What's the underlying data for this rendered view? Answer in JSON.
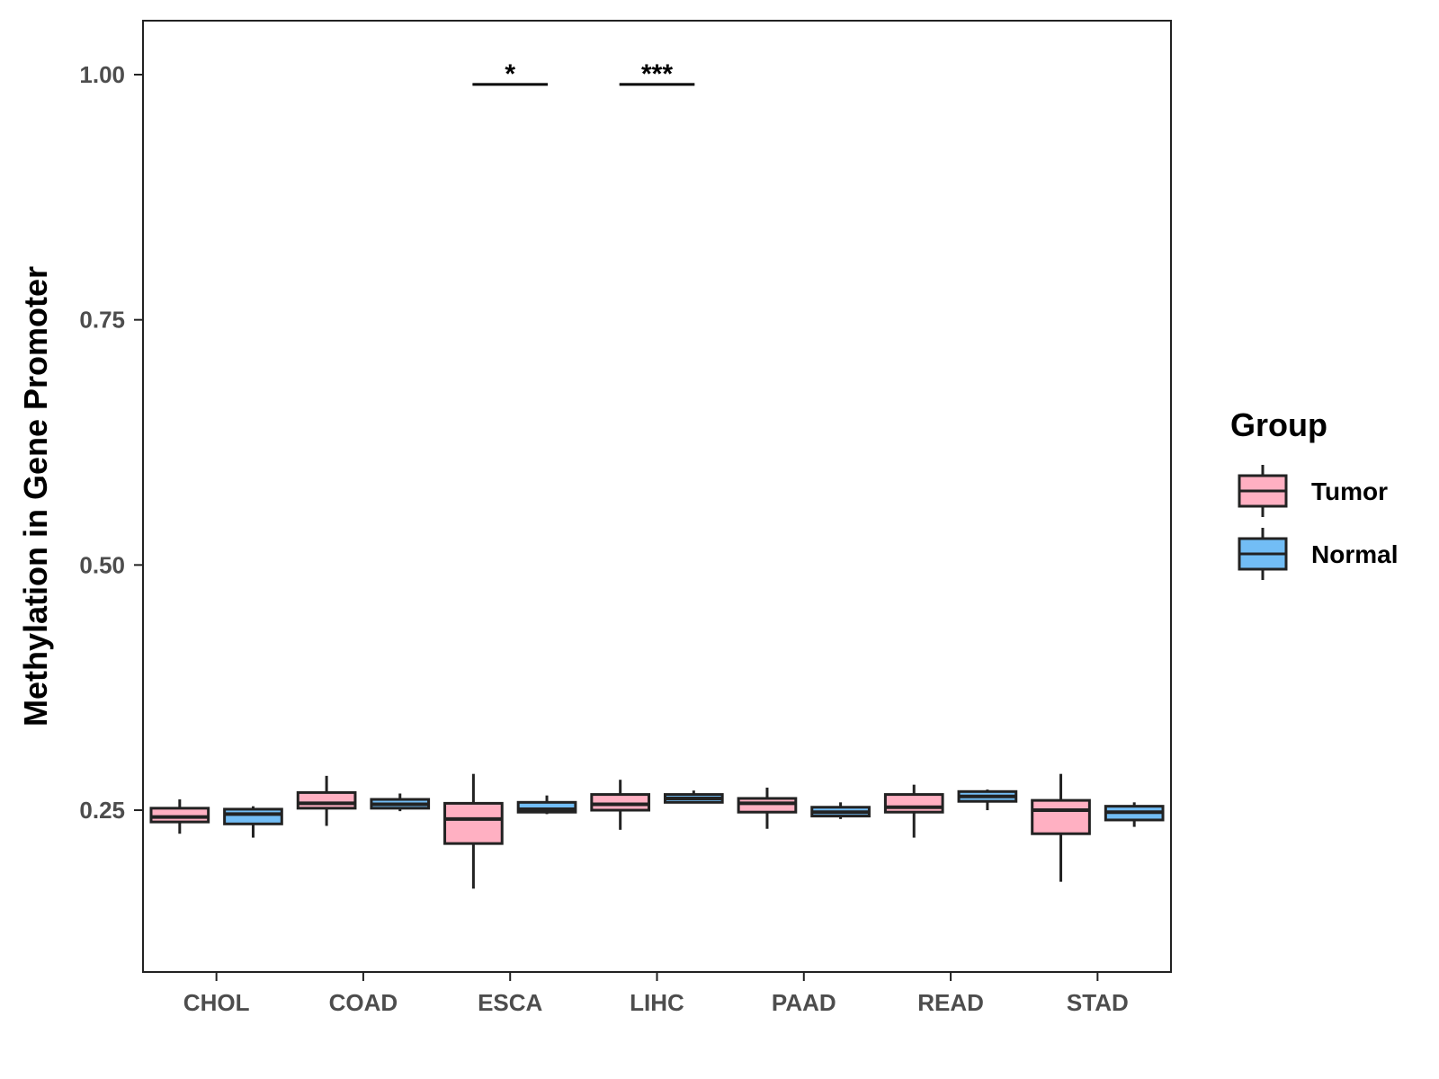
{
  "chart_data": {
    "type": "boxplot",
    "title": "",
    "xlabel": "",
    "ylabel": "Methylation in Gene Promoter",
    "ylim": [
      0.085,
      1.055
    ],
    "yticks": [
      0.25,
      0.5,
      0.75,
      1.0
    ],
    "ytick_labels": [
      "0.25",
      "0.50",
      "0.75",
      "1.00"
    ],
    "grid": false,
    "categories": [
      "CHOL",
      "COAD",
      "ESCA",
      "LIHC",
      "PAAD",
      "READ",
      "STAD"
    ],
    "legend": {
      "title": "Group",
      "position": "right",
      "entries": [
        {
          "label": "Tumor",
          "color": "#ffb0c2"
        },
        {
          "label": "Normal",
          "color": "#72bdf5"
        }
      ]
    },
    "series": [
      {
        "name": "Tumor",
        "color": "#ffb0c2",
        "boxes": [
          {
            "whisker_low": 0.226,
            "q1": 0.238,
            "median": 0.243,
            "q3": 0.252,
            "whisker_high": 0.261
          },
          {
            "whisker_low": 0.234,
            "q1": 0.252,
            "median": 0.257,
            "q3": 0.268,
            "whisker_high": 0.285
          },
          {
            "whisker_low": 0.17,
            "q1": 0.216,
            "median": 0.241,
            "q3": 0.257,
            "whisker_high": 0.287
          },
          {
            "whisker_low": 0.23,
            "q1": 0.25,
            "median": 0.256,
            "q3": 0.266,
            "whisker_high": 0.281
          },
          {
            "whisker_low": 0.231,
            "q1": 0.248,
            "median": 0.257,
            "q3": 0.262,
            "whisker_high": 0.273
          },
          {
            "whisker_low": 0.222,
            "q1": 0.248,
            "median": 0.253,
            "q3": 0.266,
            "whisker_high": 0.276
          },
          {
            "whisker_low": 0.177,
            "q1": 0.226,
            "median": 0.25,
            "q3": 0.26,
            "whisker_high": 0.287
          }
        ]
      },
      {
        "name": "Normal",
        "color": "#72bdf5",
        "boxes": [
          {
            "whisker_low": 0.222,
            "q1": 0.236,
            "median": 0.246,
            "q3": 0.251,
            "whisker_high": 0.254
          },
          {
            "whisker_low": 0.249,
            "q1": 0.252,
            "median": 0.256,
            "q3": 0.261,
            "whisker_high": 0.267
          },
          {
            "whisker_low": 0.246,
            "q1": 0.248,
            "median": 0.251,
            "q3": 0.258,
            "whisker_high": 0.265
          },
          {
            "whisker_low": 0.257,
            "q1": 0.258,
            "median": 0.262,
            "q3": 0.266,
            "whisker_high": 0.27
          },
          {
            "whisker_low": 0.241,
            "q1": 0.244,
            "median": 0.248,
            "q3": 0.253,
            "whisker_high": 0.258
          },
          {
            "whisker_low": 0.25,
            "q1": 0.259,
            "median": 0.264,
            "q3": 0.269,
            "whisker_high": 0.271
          },
          {
            "whisker_low": 0.233,
            "q1": 0.24,
            "median": 0.248,
            "q3": 0.254,
            "whisker_high": 0.258
          }
        ]
      }
    ],
    "annotations": [
      {
        "category": "ESCA",
        "label": "*",
        "y": 0.99
      },
      {
        "category": "LIHC",
        "label": "***",
        "y": 0.99
      }
    ]
  }
}
